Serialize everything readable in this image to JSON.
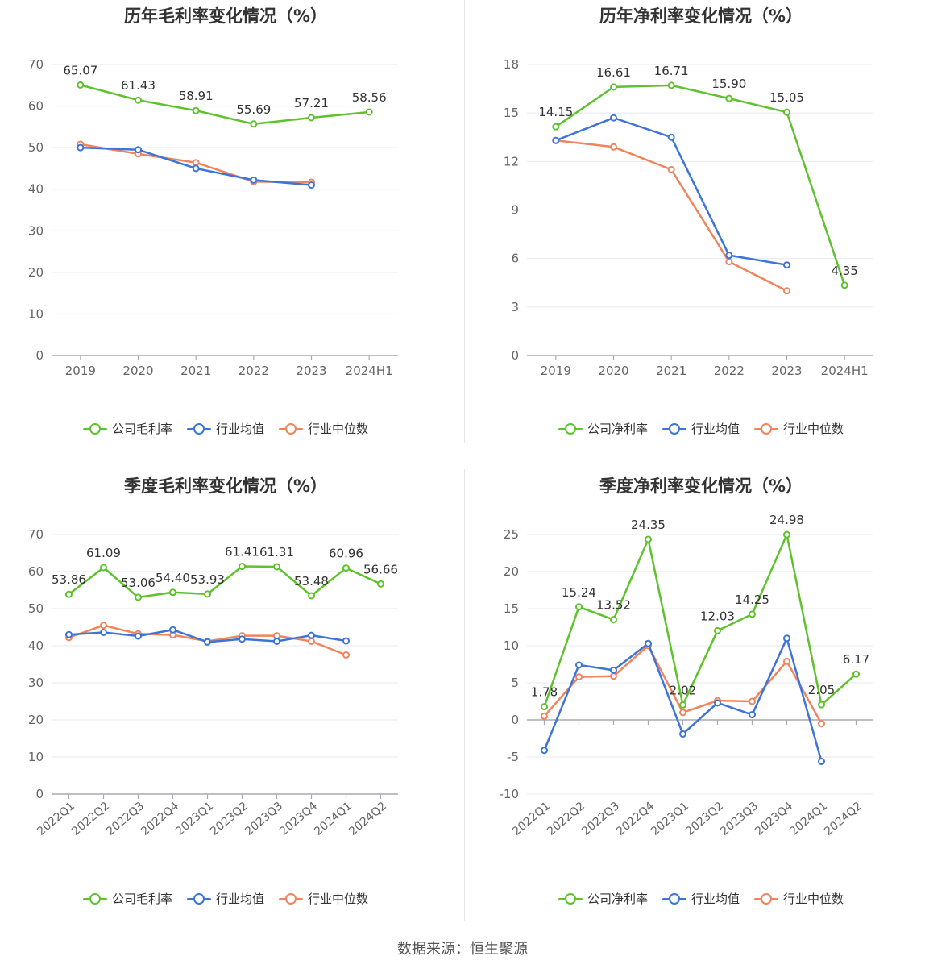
{
  "source": "数据来源：恒生聚源",
  "colors": {
    "company": "#5ec22c",
    "avg": "#3d74d9",
    "median": "#f0845c",
    "grid": "#e8e8f0",
    "axis": "#a9a9b3"
  },
  "chart_data": [
    {
      "title": "历年毛利率变化情况（%）",
      "type": "line",
      "categories": [
        "2019",
        "2020",
        "2021",
        "2022",
        "2023",
        "2024H1"
      ],
      "ylim": [
        0,
        70
      ],
      "yticks": [
        0,
        10,
        20,
        30,
        40,
        50,
        60,
        70
      ],
      "series": [
        {
          "name": "公司毛利率",
          "key": "company",
          "values": [
            65.07,
            61.43,
            58.91,
            55.69,
            57.21,
            58.56
          ],
          "labels": [
            "65.07",
            "61.43",
            "58.91",
            "55.69",
            "57.21",
            "58.56"
          ]
        },
        {
          "name": "行业均值",
          "key": "avg",
          "values": [
            50.0,
            49.5,
            45.0,
            42.2,
            41.0,
            null
          ]
        },
        {
          "name": "行业中位数",
          "key": "median",
          "values": [
            50.8,
            48.5,
            46.4,
            41.8,
            41.7,
            null
          ]
        }
      ]
    },
    {
      "title": "历年净利率变化情况（%）",
      "type": "line",
      "categories": [
        "2019",
        "2020",
        "2021",
        "2022",
        "2023",
        "2024H1"
      ],
      "ylim": [
        0,
        18
      ],
      "yticks": [
        0,
        3,
        6,
        9,
        12,
        15,
        18
      ],
      "series": [
        {
          "name": "公司净利率",
          "key": "company",
          "values": [
            14.15,
            16.61,
            16.71,
            15.9,
            15.05,
            4.35
          ],
          "labels": [
            "14.15",
            "16.61",
            "16.71",
            "15.90",
            "15.05",
            "4.35"
          ]
        },
        {
          "name": "行业均值",
          "key": "avg",
          "values": [
            13.3,
            14.7,
            13.5,
            6.2,
            5.6,
            null
          ]
        },
        {
          "name": "行业中位数",
          "key": "median",
          "values": [
            13.3,
            12.9,
            11.5,
            5.8,
            4.0,
            null
          ]
        }
      ]
    },
    {
      "title": "季度毛利率变化情况（%）",
      "type": "line",
      "categories": [
        "2022Q1",
        "2022Q2",
        "2022Q3",
        "2022Q4",
        "2023Q1",
        "2023Q2",
        "2023Q3",
        "2023Q4",
        "2024Q1",
        "2024Q2"
      ],
      "ylim": [
        0,
        70
      ],
      "yticks": [
        0,
        10,
        20,
        30,
        40,
        50,
        60,
        70
      ],
      "series": [
        {
          "name": "公司毛利率",
          "key": "company",
          "values": [
            53.86,
            61.09,
            53.06,
            54.4,
            53.93,
            61.41,
            61.31,
            53.48,
            60.96,
            56.66
          ],
          "labels": [
            "53.86",
            "61.09",
            "53.06",
            "54.40",
            "53.93",
            "61.41",
            "61.31",
            "53.48",
            "60.96",
            "56.66"
          ]
        },
        {
          "name": "行业均值",
          "key": "avg",
          "values": [
            43.0,
            43.6,
            42.6,
            44.3,
            41.0,
            41.8,
            41.2,
            42.8,
            41.3,
            null
          ]
        },
        {
          "name": "行业中位数",
          "key": "median",
          "values": [
            42.2,
            45.5,
            43.2,
            42.9,
            41.2,
            42.7,
            42.7,
            41.2,
            37.5,
            null
          ]
        }
      ]
    },
    {
      "title": "季度净利率变化情况（%）",
      "type": "line",
      "categories": [
        "2022Q1",
        "2022Q2",
        "2022Q3",
        "2022Q4",
        "2023Q1",
        "2023Q2",
        "2023Q3",
        "2023Q4",
        "2024Q1",
        "2024Q2"
      ],
      "ylim": [
        -10,
        25
      ],
      "yticks": [
        -10,
        -5,
        0,
        5,
        10,
        15,
        20,
        25
      ],
      "series": [
        {
          "name": "公司净利率",
          "key": "company",
          "values": [
            1.78,
            15.24,
            13.52,
            24.35,
            2.02,
            12.03,
            14.25,
            24.98,
            2.05,
            6.17
          ],
          "labels": [
            "1.78",
            "15.24",
            "13.52",
            "24.35",
            "2.02",
            "12.03",
            "14.25",
            "24.98",
            "2.05",
            "6.17"
          ]
        },
        {
          "name": "行业均值",
          "key": "avg",
          "values": [
            -4.1,
            7.4,
            6.7,
            10.3,
            -1.9,
            2.3,
            0.7,
            11.0,
            -5.6,
            null
          ]
        },
        {
          "name": "行业中位数",
          "key": "median",
          "values": [
            0.5,
            5.8,
            5.9,
            10.0,
            1.0,
            2.6,
            2.5,
            7.9,
            -0.5,
            null
          ]
        }
      ]
    }
  ]
}
